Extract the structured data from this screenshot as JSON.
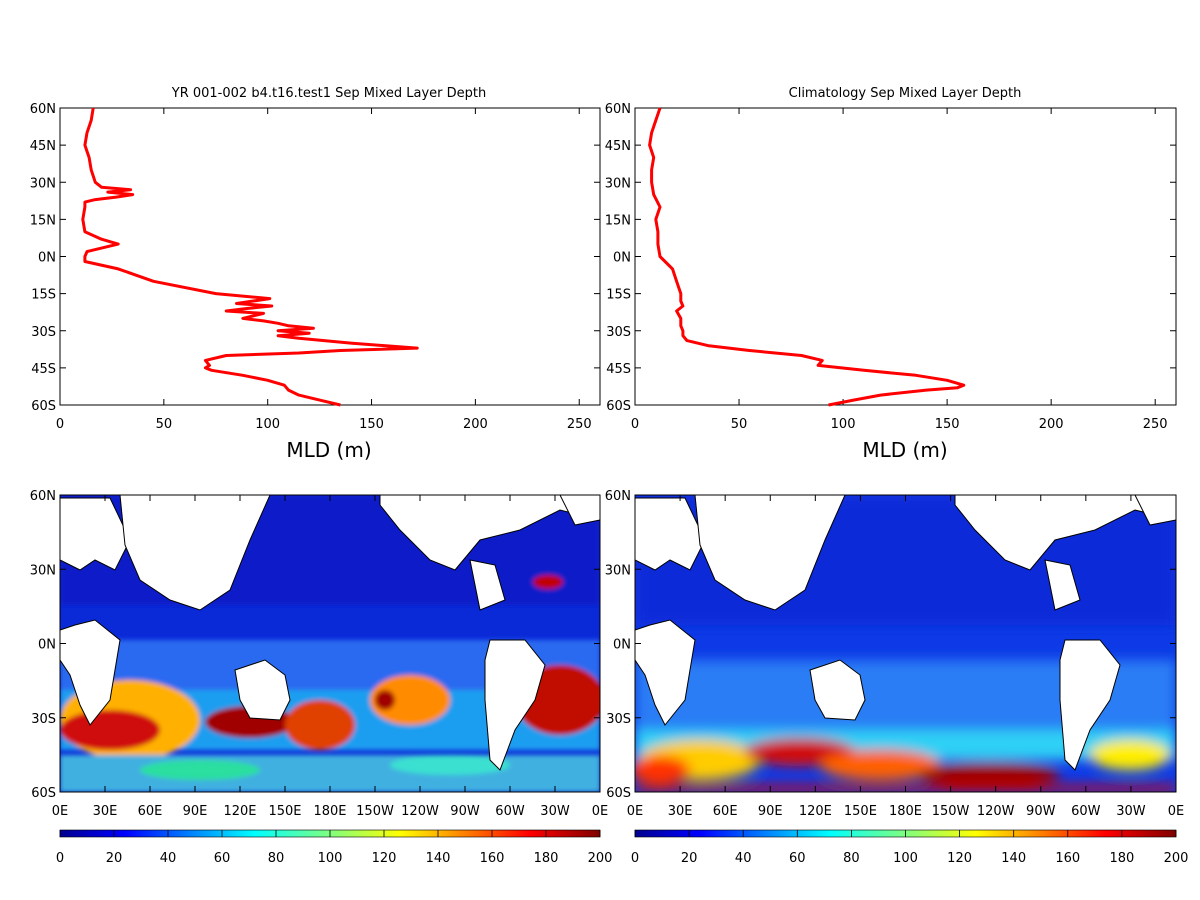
{
  "chart_data": [
    {
      "type": "line",
      "title": "YR 001-002 b4.t16.test1 Sep Mixed Layer Depth",
      "xlabel": "MLD (m)",
      "ylabel": "",
      "xlim": [
        0,
        260
      ],
      "ylim": [
        -60,
        60
      ],
      "xticks": [
        "0",
        "50",
        "100",
        "150",
        "200",
        "250"
      ],
      "yticks": [
        "60N",
        "45N",
        "30N",
        "15N",
        "0N",
        "15S",
        "30S",
        "45S",
        "60S"
      ],
      "grid": false,
      "color": "#ff0000",
      "series": [
        {
          "lat": [
            60,
            55,
            50,
            45,
            40,
            35,
            30,
            28,
            27,
            26,
            25,
            24,
            23,
            22,
            20,
            15,
            10,
            7,
            5,
            2,
            0,
            -2,
            -5,
            -10,
            -15,
            -17,
            -19,
            -20,
            -21,
            -22,
            -23,
            -25,
            -26,
            -27,
            -28,
            -29,
            -30,
            -31,
            -32,
            -33,
            -35,
            -37,
            -38,
            -39,
            -40,
            -42,
            -44,
            -45,
            -46,
            -48,
            -50,
            -52,
            -54,
            -56,
            -58,
            -60
          ],
          "mld": [
            16,
            15,
            13,
            12,
            14,
            15,
            17,
            20,
            34,
            23,
            35,
            27,
            17,
            12,
            12,
            11,
            12,
            20,
            28,
            13,
            12,
            12,
            28,
            45,
            75,
            101,
            85,
            102,
            90,
            80,
            98,
            88,
            98,
            105,
            110,
            122,
            105,
            120,
            105,
            115,
            140,
            172,
            135,
            115,
            80,
            70,
            72,
            70,
            73,
            88,
            100,
            108,
            110,
            115,
            125,
            135
          ]
        }
      ]
    },
    {
      "type": "line",
      "title": "Climatology Sep Mixed Layer Depth",
      "xlabel": "MLD (m)",
      "ylabel": "",
      "xlim": [
        0,
        260
      ],
      "ylim": [
        -60,
        60
      ],
      "xticks": [
        "0",
        "50",
        "100",
        "150",
        "200",
        "250"
      ],
      "yticks": [
        "60N",
        "45N",
        "30N",
        "15N",
        "0N",
        "15S",
        "30S",
        "45S",
        "60S"
      ],
      "grid": false,
      "color": "#ff0000",
      "series": [
        {
          "lat": [
            60,
            55,
            50,
            45,
            40,
            35,
            30,
            25,
            20,
            15,
            10,
            5,
            0,
            -5,
            -10,
            -15,
            -18,
            -20,
            -22,
            -25,
            -28,
            -30,
            -32,
            -34,
            -36,
            -38,
            -40,
            -42,
            -44,
            -46,
            -48,
            -50,
            -52,
            -53,
            -54,
            -56,
            -58,
            -60
          ],
          "mld": [
            12,
            10,
            8,
            7,
            9,
            8,
            8,
            9,
            12,
            10,
            11,
            11,
            12,
            18,
            20,
            22,
            22,
            23,
            20,
            22,
            22,
            23,
            23,
            25,
            35,
            55,
            80,
            90,
            88,
            110,
            135,
            150,
            158,
            155,
            140,
            118,
            105,
            93
          ]
        }
      ]
    },
    {
      "type": "heatmap",
      "title": "",
      "xticks": [
        "0E",
        "30E",
        "60E",
        "90E",
        "120E",
        "150E",
        "180E",
        "150W",
        "120W",
        "90W",
        "60W",
        "30W",
        "0E"
      ],
      "yticks": [
        "60N",
        "30N",
        "0N",
        "30S",
        "60S"
      ],
      "colorbar": {
        "min": 0,
        "max": 200,
        "ticks": [
          "0",
          "20",
          "40",
          "60",
          "80",
          "100",
          "120",
          "140",
          "160",
          "180",
          "200"
        ],
        "colormap": "jet"
      }
    },
    {
      "type": "heatmap",
      "title": "",
      "xticks": [
        "0E",
        "30E",
        "60E",
        "90E",
        "120E",
        "150E",
        "180E",
        "150W",
        "120W",
        "90W",
        "60W",
        "30W",
        "0E"
      ],
      "yticks": [
        "60N",
        "30N",
        "0N",
        "30S",
        "60S"
      ],
      "colorbar": {
        "min": 0,
        "max": 200,
        "ticks": [
          "0",
          "20",
          "40",
          "60",
          "80",
          "100",
          "120",
          "140",
          "160",
          "180",
          "200"
        ],
        "colormap": "jet"
      }
    }
  ]
}
